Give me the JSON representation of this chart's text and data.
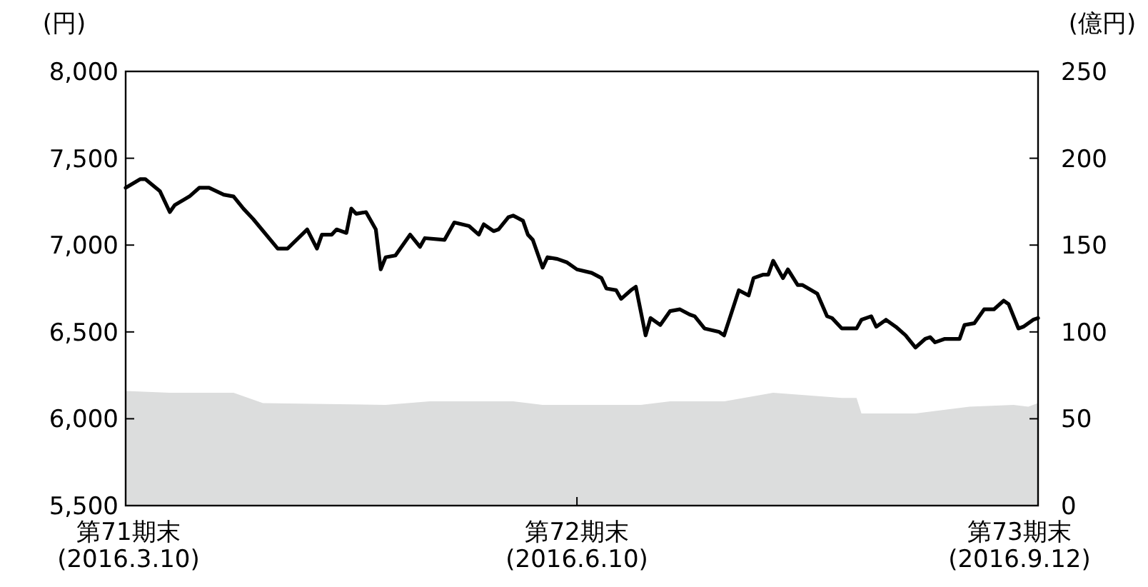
{
  "chart_data": {
    "type": "line",
    "ylabel": "(円)",
    "y2label": "(億円)",
    "xlim": [
      "2016-03-10",
      "2016-09-12"
    ],
    "xticks": [
      {
        "value": "2016-03-10",
        "label": "第71期末\n(2016.3.10)"
      },
      {
        "value": "2016-06-10",
        "label": "第72期末\n(2016.6.10)"
      },
      {
        "value": "2016-09-12",
        "label": "第73期末\n(2016.9.12)"
      }
    ],
    "ylim": [
      5500,
      8000
    ],
    "yticks": [
      {
        "value": 5500,
        "label": "5,500"
      },
      {
        "value": 6000,
        "label": "6,000"
      },
      {
        "value": 6500,
        "label": "6,500"
      },
      {
        "value": 7000,
        "label": "7,000"
      },
      {
        "value": 7500,
        "label": "7,500"
      },
      {
        "value": 8000,
        "label": "8,000"
      }
    ],
    "y2lim": [
      0,
      250
    ],
    "y2ticks": [
      0,
      50,
      100,
      150,
      200,
      250
    ],
    "grid": false,
    "series": [
      {
        "type": "area",
        "axis": "y2",
        "color": "#dcdddd",
        "x": [
          "2016-03-10",
          "2016-03-19",
          "2016-03-28",
          "2016-04-01",
          "2016-04-07",
          "2016-05-02",
          "2016-05-11",
          "2016-05-28",
          "2016-06-03",
          "2016-06-23",
          "2016-06-29",
          "2016-07-10",
          "2016-07-14",
          "2016-07-20",
          "2016-08-03",
          "2016-08-06",
          "2016-08-07",
          "2016-08-18",
          "2016-08-29",
          "2016-09-07",
          "2016-09-10",
          "2016-09-12"
        ],
        "values": [
          66,
          65,
          65,
          65,
          59,
          58,
          60,
          60,
          58,
          58,
          60,
          60,
          62,
          65,
          62,
          62,
          53,
          53,
          57,
          58,
          57,
          59
        ]
      },
      {
        "axis": "y",
        "color": "#000000",
        "x": [
          "2016-03-10",
          "2016-03-13",
          "2016-03-14",
          "2016-03-17",
          "2016-03-19",
          "2016-03-20",
          "2016-03-23",
          "2016-03-25",
          "2016-03-27",
          "2016-03-30",
          "2016-04-01",
          "2016-04-03",
          "2016-04-05",
          "2016-04-10",
          "2016-04-12",
          "2016-04-16",
          "2016-04-18",
          "2016-04-19",
          "2016-04-21",
          "2016-04-22",
          "2016-04-24",
          "2016-04-25",
          "2016-04-26",
          "2016-04-28",
          "2016-04-30",
          "2016-05-01",
          "2016-05-02",
          "2016-05-04",
          "2016-05-07",
          "2016-05-09",
          "2016-05-10",
          "2016-05-14",
          "2016-05-16",
          "2016-05-19",
          "2016-05-21",
          "2016-05-22",
          "2016-05-24",
          "2016-05-25",
          "2016-05-27",
          "2016-05-28",
          "2016-05-30",
          "2016-05-31",
          "2016-06-01",
          "2016-06-03",
          "2016-06-04",
          "2016-06-06",
          "2016-06-08",
          "2016-06-10",
          "2016-06-13",
          "2016-06-15",
          "2016-06-16",
          "2016-06-18",
          "2016-06-19",
          "2016-06-21",
          "2016-06-22",
          "2016-06-24",
          "2016-06-25",
          "2016-06-27",
          "2016-06-29",
          "2016-07-01",
          "2016-07-03",
          "2016-07-04",
          "2016-07-06",
          "2016-07-09",
          "2016-07-10",
          "2016-07-13",
          "2016-07-15",
          "2016-07-16",
          "2016-07-18",
          "2016-07-19",
          "2016-07-20",
          "2016-07-22",
          "2016-07-23",
          "2016-07-25",
          "2016-07-26",
          "2016-07-29",
          "2016-07-31",
          "2016-08-01",
          "2016-08-03",
          "2016-08-06",
          "2016-08-07",
          "2016-08-09",
          "2016-08-10",
          "2016-08-12",
          "2016-08-14",
          "2016-08-16",
          "2016-08-18",
          "2016-08-20",
          "2016-08-21",
          "2016-08-22",
          "2016-08-24",
          "2016-08-27",
          "2016-08-28",
          "2016-08-30",
          "2016-09-01",
          "2016-09-03",
          "2016-09-05",
          "2016-09-06",
          "2016-09-08",
          "2016-09-09",
          "2016-09-11",
          "2016-09-12"
        ],
        "values": [
          7330,
          7380,
          7380,
          7310,
          7190,
          7230,
          7280,
          7330,
          7330,
          7290,
          7280,
          7210,
          7150,
          6980,
          6980,
          7090,
          6980,
          7060,
          7060,
          7090,
          7070,
          7210,
          7180,
          7190,
          7090,
          6860,
          6930,
          6940,
          7060,
          6990,
          7040,
          7030,
          7130,
          7110,
          7060,
          7120,
          7080,
          7090,
          7160,
          7170,
          7140,
          7060,
          7030,
          6870,
          6930,
          6920,
          6900,
          6860,
          6840,
          6810,
          6750,
          6740,
          6690,
          6740,
          6760,
          6480,
          6580,
          6540,
          6620,
          6630,
          6600,
          6590,
          6520,
          6500,
          6480,
          6740,
          6710,
          6810,
          6830,
          6830,
          6910,
          6810,
          6860,
          6770,
          6770,
          6720,
          6590,
          6580,
          6520,
          6520,
          6570,
          6590,
          6530,
          6570,
          6530,
          6480,
          6410,
          6460,
          6470,
          6440,
          6460,
          6460,
          6540,
          6550,
          6630,
          6630,
          6680,
          6660,
          6520,
          6530,
          6570,
          6580
        ]
      }
    ]
  }
}
